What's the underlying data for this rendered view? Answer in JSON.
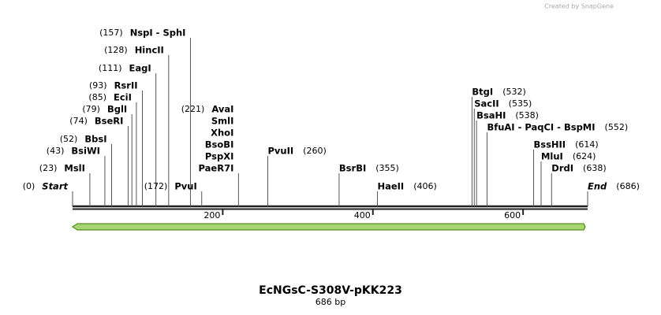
{
  "watermark": "Created by SnapGene",
  "map": {
    "title": "EcNGsC-S308V-pKK223",
    "length_label": "686 bp",
    "ticks": [
      200,
      400,
      600
    ],
    "sites": [
      {
        "names": [
          "Start"
        ],
        "position": {
          "value": 0,
          "label": "(0)"
        }
      },
      {
        "names": [
          "MslI"
        ],
        "position": {
          "value": 23,
          "label": "(23)"
        }
      },
      {
        "names": [
          "BsiWI"
        ],
        "position": {
          "value": 43,
          "label": "(43)"
        }
      },
      {
        "names": [
          "BbsI"
        ],
        "position": {
          "value": 52,
          "label": "(52)"
        }
      },
      {
        "names": [
          "BseRI"
        ],
        "position": {
          "value": 74,
          "label": "(74)"
        }
      },
      {
        "names": [
          "BglI"
        ],
        "position": {
          "value": 79,
          "label": "(79)"
        }
      },
      {
        "names": [
          "EciI"
        ],
        "position": {
          "value": 85,
          "label": "(85)"
        }
      },
      {
        "names": [
          "RsrII"
        ],
        "position": {
          "value": 93,
          "label": "(93)"
        }
      },
      {
        "names": [
          "EagI"
        ],
        "position": {
          "value": 111,
          "label": "(111)"
        }
      },
      {
        "names": [
          "HincII"
        ],
        "position": {
          "value": 128,
          "label": "(128)"
        }
      },
      {
        "names": [
          "NspI  -  SphI"
        ],
        "position": {
          "value": 157,
          "label": "(157)"
        }
      },
      {
        "names": [
          "PvuI"
        ],
        "position": {
          "value": 172,
          "label": "(172)"
        }
      },
      {
        "names": [
          "AvaI",
          "SmlI",
          "XhoI",
          "BsoBI",
          "PspXI",
          "PaeR7I"
        ],
        "position": {
          "value": 221,
          "label": "(221)"
        }
      },
      {
        "names": [
          "PvuII"
        ],
        "position": {
          "value": 260,
          "label": "(260)"
        }
      },
      {
        "names": [
          "BsrBI"
        ],
        "position": {
          "value": 355,
          "label": "(355)"
        }
      },
      {
        "names": [
          "HaeII"
        ],
        "position": {
          "value": 406,
          "label": "(406)"
        }
      },
      {
        "names": [
          "BtgI"
        ],
        "position": {
          "value": 532,
          "label": "(532)"
        }
      },
      {
        "names": [
          "SacII"
        ],
        "position": {
          "value": 535,
          "label": "(535)"
        }
      },
      {
        "names": [
          "BsaHI"
        ],
        "position": {
          "value": 538,
          "label": "(538)"
        }
      },
      {
        "names": [
          "BfuAI  -  PaqCI  -  BspMI"
        ],
        "position": {
          "value": 552,
          "label": "(552)"
        }
      },
      {
        "names": [
          "BssHII"
        ],
        "position": {
          "value": 614,
          "label": "(614)"
        }
      },
      {
        "names": [
          "MluI"
        ],
        "position": {
          "value": 624,
          "label": "(624)"
        }
      },
      {
        "names": [
          "DrdI"
        ],
        "position": {
          "value": 638,
          "label": "(638)"
        }
      },
      {
        "names": [
          "End"
        ],
        "position": {
          "value": 686,
          "label": "(686)"
        }
      }
    ]
  }
}
